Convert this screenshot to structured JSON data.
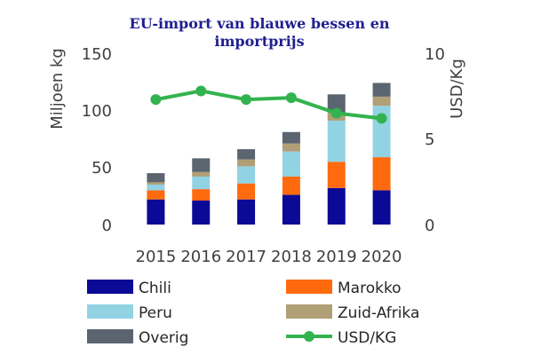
{
  "chart_data": {
    "type": "bar",
    "title_lines": [
      "EU-import van blauwe bessen en",
      "importprijs"
    ],
    "ylabel": "Miljoen kg",
    "y2label": "USD/Kg",
    "ylim": [
      0,
      150
    ],
    "y2lim": [
      0,
      10
    ],
    "yticks": [
      "150",
      "100",
      "50",
      "0"
    ],
    "y2ticks": [
      "10",
      "5",
      "0"
    ],
    "categories": [
      "2015",
      "2016",
      "2017",
      "2018",
      "2019",
      "2020"
    ],
    "stacked": true,
    "series": [
      {
        "name": "Chili",
        "color": "#0a0a96",
        "values": [
          22,
          21,
          22,
          26,
          32,
          30
        ]
      },
      {
        "name": "Marokko",
        "color": "#ff6a0f",
        "values": [
          8,
          10,
          14,
          16,
          23,
          29
        ]
      },
      {
        "name": "Peru",
        "color": "#92d3e3",
        "values": [
          5,
          11,
          15,
          22,
          36,
          45
        ]
      },
      {
        "name": "Zuid-Afrika",
        "color": "#b09f77",
        "values": [
          2,
          4,
          6,
          7,
          7,
          8
        ]
      },
      {
        "name": "Overig",
        "color": "#5a6570",
        "values": [
          8,
          12,
          9,
          10,
          16,
          12
        ]
      }
    ],
    "line_series": {
      "name": "USD/KG",
      "color": "#33b34f",
      "axis": "right",
      "values": [
        7.3,
        7.8,
        7.3,
        7.4,
        6.5,
        6.2
      ]
    },
    "grid": false,
    "legend_position": "bottom"
  }
}
